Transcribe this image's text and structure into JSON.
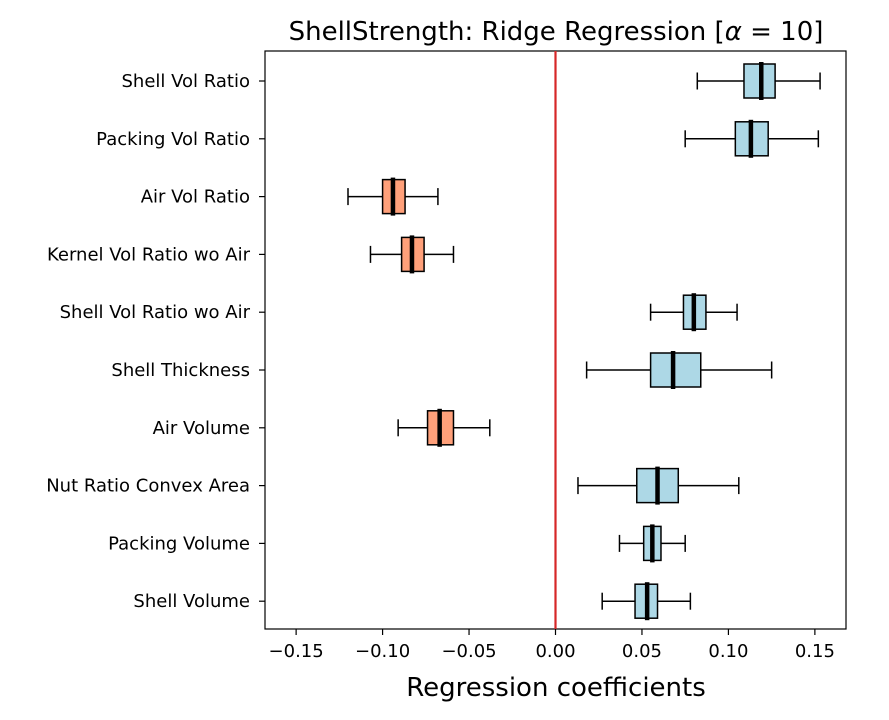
{
  "chart_data": {
    "type": "boxplot",
    "orientation": "horizontal",
    "title": "ShellStrength: Ridge Regression [α = 10]",
    "title_prefix": "ShellStrength: Ridge Regression [",
    "title_alpha": "α",
    "title_suffix": " = 10]",
    "xlabel": "Regression coefficients",
    "ylabel": "",
    "xlim": [
      -0.168,
      0.168
    ],
    "xticks": [
      -0.15,
      -0.1,
      -0.05,
      0.0,
      0.05,
      0.1,
      0.15
    ],
    "xtick_labels": [
      "−0.15",
      "−0.10",
      "−0.05",
      "0.00",
      "0.05",
      "0.10",
      "0.15"
    ],
    "reference_line": {
      "x": 0.0,
      "color": "#d62728"
    },
    "colors": {
      "positive": "#add8e6",
      "negative": "#ffa07a",
      "edge": "#000000"
    },
    "grid": false,
    "legend": "none",
    "categories": [
      "Shell Vol Ratio",
      "Packing Vol Ratio",
      "Air Vol Ratio",
      "Kernel Vol Ratio wo Air",
      "Shell Vol Ratio wo Air",
      "Shell Thickness",
      "Air Volume",
      "Nut Ratio Convex Area",
      "Packing Volume",
      "Shell Volume"
    ],
    "boxes": [
      {
        "label": "Shell Vol Ratio",
        "whislo": 0.082,
        "q1": 0.109,
        "median": 0.119,
        "q3": 0.127,
        "whishi": 0.153,
        "sign": "positive"
      },
      {
        "label": "Packing Vol Ratio",
        "whislo": 0.075,
        "q1": 0.104,
        "median": 0.113,
        "q3": 0.123,
        "whishi": 0.152,
        "sign": "positive"
      },
      {
        "label": "Air Vol Ratio",
        "whislo": -0.12,
        "q1": -0.1,
        "median": -0.094,
        "q3": -0.087,
        "whishi": -0.068,
        "sign": "negative"
      },
      {
        "label": "Kernel Vol Ratio wo Air",
        "whislo": -0.107,
        "q1": -0.089,
        "median": -0.083,
        "q3": -0.076,
        "whishi": -0.059,
        "sign": "negative"
      },
      {
        "label": "Shell Vol Ratio wo Air",
        "whislo": 0.055,
        "q1": 0.074,
        "median": 0.08,
        "q3": 0.087,
        "whishi": 0.105,
        "sign": "positive"
      },
      {
        "label": "Shell Thickness",
        "whislo": 0.018,
        "q1": 0.055,
        "median": 0.068,
        "q3": 0.084,
        "whishi": 0.125,
        "sign": "positive"
      },
      {
        "label": "Air Volume",
        "whislo": -0.091,
        "q1": -0.074,
        "median": -0.067,
        "q3": -0.059,
        "whishi": -0.038,
        "sign": "negative"
      },
      {
        "label": "Nut Ratio Convex Area",
        "whislo": 0.013,
        "q1": 0.047,
        "median": 0.059,
        "q3": 0.071,
        "whishi": 0.106,
        "sign": "positive"
      },
      {
        "label": "Packing Volume",
        "whislo": 0.037,
        "q1": 0.051,
        "median": 0.056,
        "q3": 0.061,
        "whishi": 0.075,
        "sign": "positive"
      },
      {
        "label": "Shell Volume",
        "whislo": 0.027,
        "q1": 0.046,
        "median": 0.053,
        "q3": 0.059,
        "whishi": 0.078,
        "sign": "positive"
      }
    ]
  }
}
